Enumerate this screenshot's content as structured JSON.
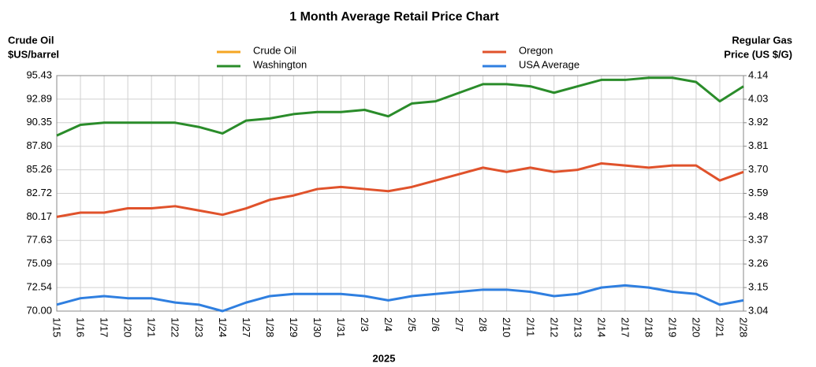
{
  "chart_data": {
    "type": "line",
    "title": "1 Month Average Retail Price Chart",
    "ylabel": [
      "Crude Oil",
      "$US/barrel"
    ],
    "y2label": [
      "Regular Gas",
      "Price (US $/G)"
    ],
    "xlabel": "2025",
    "categories": [
      "1/15",
      "1/16",
      "1/17",
      "1/20",
      "1/21",
      "1/22",
      "1/23",
      "1/24",
      "1/27",
      "1/28",
      "1/29",
      "1/30",
      "1/31",
      "2/3",
      "2/4",
      "2/5",
      "2/6",
      "2/7",
      "2/8",
      "2/10",
      "2/11",
      "2/12",
      "2/13",
      "2/14",
      "2/17",
      "2/18",
      "2/19",
      "2/20",
      "2/21",
      "2/28"
    ],
    "ylim": [
      70,
      95.43
    ],
    "yticks": [
      {
        "value": 70,
        "label": "70.00"
      },
      72.54,
      75.09,
      77.63,
      80.17,
      82.72,
      85.26,
      {
        "value": 87.8,
        "label": "87.80"
      },
      90.35,
      92.89,
      95.43
    ],
    "y2lim": [
      3.04,
      4.14
    ],
    "y2ticks": [
      3.04,
      3.15,
      3.26,
      3.37,
      3.48,
      3.59,
      {
        "value": 3.7,
        "label": "3.70"
      },
      3.81,
      3.92,
      4.03,
      4.14
    ],
    "grid": true,
    "series": [
      {
        "name": "Crude Oil",
        "color": "#f5a623",
        "values": [
          null,
          null,
          null,
          null,
          null,
          null,
          null,
          null,
          null,
          null,
          null,
          null,
          null,
          null,
          null,
          null,
          null,
          null,
          null,
          null,
          null,
          null,
          null,
          null,
          null,
          null,
          null,
          null,
          null,
          null
        ]
      },
      {
        "name": "Oregon",
        "color": "#e0522b",
        "axis": "y2",
        "values": [
          3.48,
          3.5,
          3.5,
          3.52,
          3.52,
          3.53,
          3.51,
          3.49,
          3.52,
          3.56,
          3.58,
          3.61,
          3.62,
          3.61,
          3.6,
          3.62,
          3.65,
          3.68,
          3.71,
          3.69,
          3.71,
          3.69,
          3.7,
          3.73,
          3.72,
          3.71,
          3.72,
          3.72,
          3.65,
          3.69
        ]
      },
      {
        "name": "Washington",
        "color": "#2a8c2a",
        "axis": "y2",
        "values": [
          3.86,
          3.91,
          3.92,
          3.92,
          3.92,
          3.92,
          3.9,
          3.87,
          3.93,
          3.94,
          3.96,
          3.97,
          3.97,
          3.98,
          3.95,
          4.01,
          4.02,
          4.06,
          4.1,
          4.1,
          4.09,
          4.06,
          4.09,
          4.12,
          4.12,
          4.13,
          4.13,
          4.11,
          4.02,
          4.09
        ]
      },
      {
        "name": "USA Average",
        "color": "#2f7fe0",
        "axis": "y2",
        "values": [
          3.07,
          3.1,
          3.11,
          3.1,
          3.1,
          3.08,
          3.07,
          3.04,
          3.08,
          3.11,
          3.12,
          3.12,
          3.12,
          3.11,
          3.09,
          3.11,
          3.12,
          3.13,
          3.14,
          3.14,
          3.13,
          3.11,
          3.12,
          3.15,
          3.16,
          3.15,
          3.13,
          3.12,
          3.07,
          3.09
        ]
      }
    ]
  }
}
